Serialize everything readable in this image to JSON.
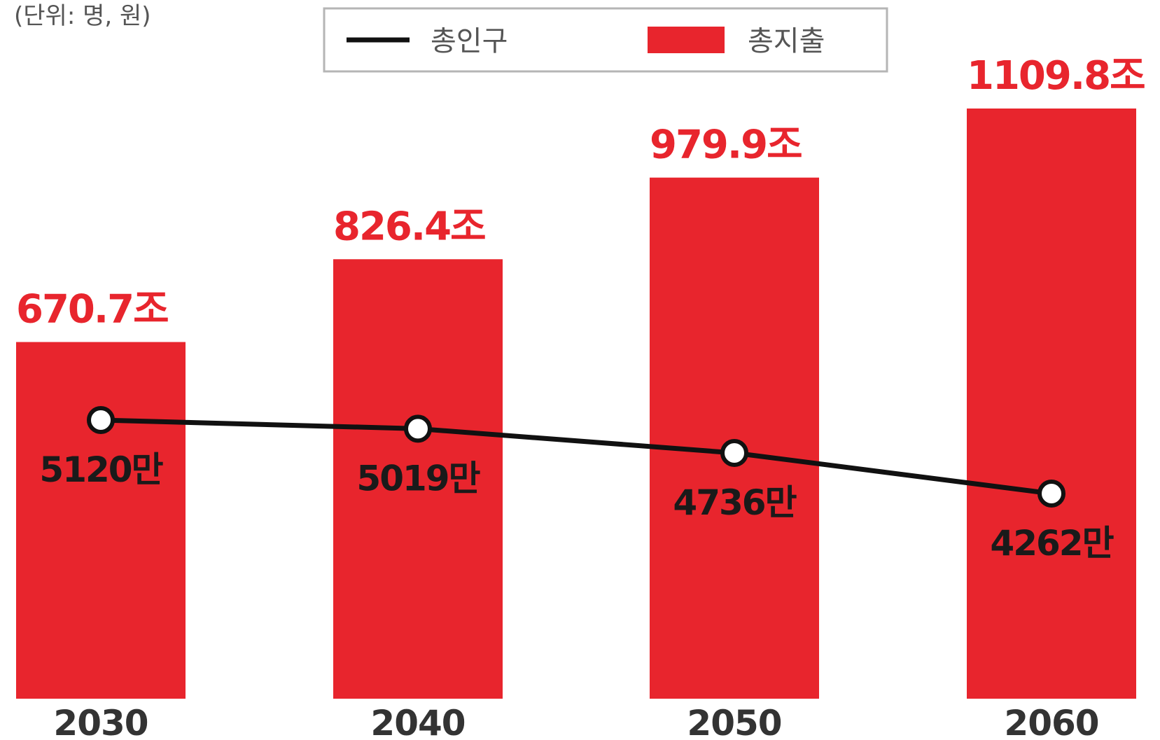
{
  "chart_data": {
    "type": "bar",
    "unit_note": "(단위: 명, 원)",
    "categories": [
      "2030",
      "2040",
      "2050",
      "2060"
    ],
    "series": [
      {
        "name": "총지출",
        "type": "bar",
        "values": [
          670.7,
          826.4,
          979.9,
          1109.8
        ],
        "labels": [
          "670.7조",
          "826.4조",
          "979.9조",
          "1109.8조"
        ]
      },
      {
        "name": "총인구",
        "type": "line",
        "values": [
          5120,
          5019,
          4736,
          4262
        ],
        "labels": [
          "5120만",
          "5019만",
          "4736만",
          "4262만"
        ]
      }
    ],
    "legend": {
      "position": "top",
      "items": [
        "총인구",
        "총지출"
      ]
    },
    "colors": {
      "bar": "#e8252d",
      "line": "#111111",
      "marker_fill": "#ffffff",
      "bar_label": "#e8252d"
    },
    "grid": false
  }
}
